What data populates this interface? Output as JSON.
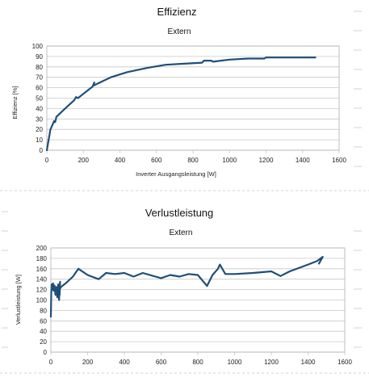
{
  "colors": {
    "series": "#1f4e79",
    "grid": "#c8c8c8",
    "background": "#ffffff"
  },
  "chart_data": [
    {
      "type": "line",
      "title": "Effizienz",
      "subtitle": "Extern",
      "xlabel": "Inverter Ausgangsleistung [W]",
      "ylabel": "Effizienz [%]",
      "xlim": [
        0,
        1600
      ],
      "ylim": [
        0,
        100
      ],
      "xticks": [
        "0",
        "200",
        "400",
        "600",
        "800",
        "1000",
        "1200",
        "1400",
        "1600"
      ],
      "yticks": [
        "0",
        "10",
        "20",
        "30",
        "40",
        "50",
        "60",
        "70",
        "80",
        "90",
        "100"
      ],
      "grid": true,
      "legend": "none",
      "series": [
        {
          "x": [
            0,
            20,
            40,
            45,
            50,
            52,
            100,
            150,
            160,
            170,
            250,
            260,
            255,
            350,
            440,
            550,
            650,
            750,
            850,
            860,
            900,
            910,
            1000,
            1100,
            1190,
            1200,
            1300,
            1400,
            1470
          ],
          "y": [
            0,
            20,
            28,
            27,
            30,
            32,
            40,
            48,
            51,
            50,
            61,
            65,
            62,
            70,
            75,
            79,
            82,
            83,
            84,
            86,
            86,
            85,
            87,
            88,
            88,
            89,
            89,
            89,
            89
          ]
        }
      ]
    },
    {
      "type": "line",
      "title": "Verlustleistung",
      "subtitle": "Extern",
      "xlabel": "",
      "ylabel": "Verlustleistung [W]",
      "xlim": [
        0,
        1600
      ],
      "ylim": [
        0,
        200
      ],
      "xticks": [
        "0",
        "200",
        "400",
        "600",
        "800",
        "1000",
        "1200",
        "1400",
        "1600"
      ],
      "yticks": [
        "0",
        "20",
        "40",
        "60",
        "80",
        "100",
        "120",
        "140",
        "160",
        "180",
        "200"
      ],
      "grid": true,
      "legend": "none",
      "series": [
        {
          "x": [
            0,
            2,
            5,
            8,
            12,
            15,
            20,
            25,
            30,
            35,
            40,
            45,
            48,
            50,
            48,
            45,
            55,
            80,
            120,
            150,
            200,
            260,
            300,
            350,
            400,
            450,
            500,
            600,
            650,
            700,
            750,
            800,
            850,
            880,
            910,
            920,
            950,
            1000,
            1100,
            1200,
            1250,
            1300,
            1400,
            1450,
            1480,
            1460
          ],
          "y": [
            68,
            115,
            130,
            120,
            132,
            118,
            128,
            110,
            125,
            105,
            130,
            100,
            125,
            135,
            110,
            118,
            125,
            132,
            145,
            160,
            148,
            140,
            152,
            150,
            152,
            145,
            152,
            142,
            148,
            145,
            150,
            148,
            127,
            148,
            160,
            168,
            150,
            150,
            152,
            155,
            146,
            155,
            168,
            175,
            183,
            170
          ]
        }
      ]
    }
  ]
}
